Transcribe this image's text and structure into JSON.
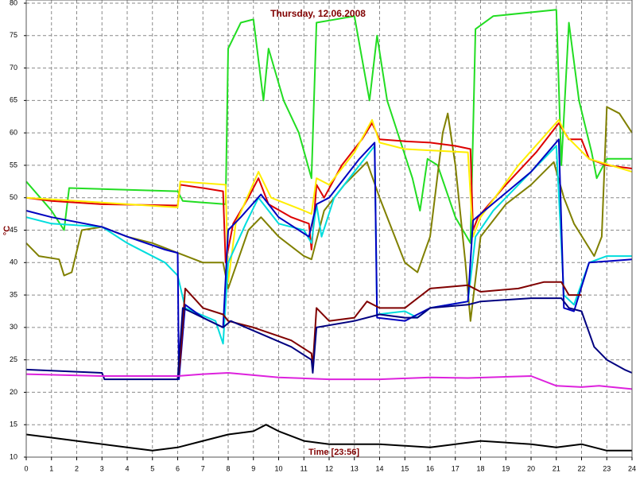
{
  "chart_data": {
    "type": "line",
    "title": "Thursday, 12.06.2008",
    "x_label": "Time [23:56]",
    "y_label": "°C",
    "xlim": [
      0,
      24
    ],
    "xticks": [
      0,
      1,
      2,
      3,
      4,
      5,
      6,
      7,
      8,
      9,
      10,
      11,
      12,
      13,
      14,
      15,
      16,
      17,
      18,
      19,
      20,
      21,
      22,
      23,
      24
    ],
    "ylim": [
      10,
      80
    ],
    "yticks": [
      10,
      15,
      20,
      25,
      30,
      35,
      40,
      45,
      50,
      55,
      60,
      65,
      70,
      75,
      80
    ],
    "grid": true,
    "series": [
      {
        "color": "#22dd22",
        "x": [
          0,
          1,
          1.5,
          1.7,
          6,
          6.2,
          7.9,
          8,
          8.5,
          9,
          9.4,
          9.6,
          10.2,
          10.8,
          11.3,
          11.5,
          13,
          13.6,
          13.9,
          14.3,
          15.3,
          15.6,
          15.9,
          16.3,
          17,
          17.6,
          17.8,
          18.5,
          21,
          21.2,
          21.5,
          21.9,
          22.4,
          22.6,
          23,
          24
        ],
        "values": [
          52.5,
          48,
          45,
          51.5,
          51,
          49.5,
          49,
          73,
          77,
          77.5,
          65,
          73,
          65,
          60,
          53,
          77,
          78,
          65,
          75,
          65,
          53,
          48,
          56,
          55,
          47,
          43,
          76,
          78,
          79,
          55,
          77,
          65,
          57,
          53,
          56,
          56
        ]
      },
      {
        "color": "#808000",
        "x": [
          0,
          0.5,
          1.3,
          1.5,
          1.8,
          2.2,
          3,
          4,
          5,
          6,
          7,
          7.8,
          8,
          8.8,
          9.3,
          10,
          11,
          11.3,
          11.8,
          12.6,
          13.5,
          14,
          14.5,
          15,
          15.5,
          16,
          16.5,
          16.7,
          17,
          17.4,
          17.6,
          18,
          19,
          20,
          20.9,
          21.3,
          21.7,
          22.5,
          22.8,
          23,
          23.5,
          24
        ],
        "values": [
          43,
          41,
          40.5,
          38,
          38.5,
          45,
          45.5,
          44,
          43,
          41.5,
          40,
          40,
          36,
          45,
          47,
          44,
          41,
          40.5,
          48,
          52,
          55.5,
          50,
          45,
          40,
          38.5,
          44,
          60,
          63,
          55,
          40,
          31,
          44,
          49,
          52,
          55.5,
          50,
          46,
          41,
          44,
          64,
          63,
          60
        ]
      },
      {
        "color": "#dd0000",
        "x": [
          0,
          1,
          3,
          6,
          6.1,
          7,
          7.8,
          7.9,
          8.2,
          8.8,
          9.2,
          9.6,
          10.5,
          11.2,
          11.3,
          11.5,
          11.8,
          12.5,
          13.3,
          13.7,
          14,
          15,
          16,
          17,
          17.6,
          17.7,
          17.9,
          19,
          20.2,
          21.1,
          21.5,
          22,
          22.3,
          23,
          24
        ],
        "values": [
          50,
          49.5,
          49,
          48.8,
          52,
          51.5,
          51,
          40,
          46,
          50,
          53,
          49,
          47,
          46,
          42,
          52,
          50,
          55,
          59,
          61.5,
          59,
          58.7,
          58.5,
          58,
          57.5,
          45,
          47,
          52,
          57,
          61.5,
          59,
          59,
          56,
          55,
          54.5
        ]
      },
      {
        "color": "#ffee00",
        "x": [
          0,
          6,
          6.1,
          7.9,
          8,
          8.3,
          9.2,
          9.7,
          11,
          11.3,
          11.5,
          12,
          13,
          13.7,
          14,
          15,
          17.5,
          17.7,
          18,
          19.5,
          21.1,
          21.4,
          22.3,
          24
        ],
        "values": [
          50,
          48.5,
          52.5,
          52,
          37,
          46,
          54,
          50,
          48,
          47.5,
          53,
          52,
          57,
          62,
          58.5,
          57.5,
          57,
          44,
          47,
          55,
          62,
          59.5,
          56,
          54
        ]
      },
      {
        "color": "#00dddd",
        "x": [
          0,
          1,
          3,
          4,
          5.5,
          6,
          6.3,
          7.5,
          7.8,
          8,
          8.7,
          9.2,
          10,
          11,
          11.3,
          11.5,
          11.7,
          12.2,
          13.2,
          13.8,
          13.9,
          15,
          15.5,
          16,
          17.5,
          17.8,
          18.5,
          20,
          21,
          21.3,
          21.7,
          22.3,
          23,
          24
        ],
        "values": [
          47,
          46,
          45.5,
          43,
          40,
          38,
          33,
          31,
          27.5,
          40,
          46,
          50,
          46,
          45,
          43,
          49,
          44,
          50,
          55,
          58,
          32,
          32.5,
          31.5,
          33,
          34,
          44,
          48,
          54,
          58,
          35,
          33.5,
          40,
          41,
          41
        ]
      },
      {
        "color": "#0000c0",
        "x": [
          0,
          1,
          3,
          4,
          5.5,
          6,
          6.05,
          6.3,
          7,
          7.8,
          8,
          8.5,
          9.3,
          10,
          11.2,
          11.5,
          12,
          13.2,
          13.8,
          13.9,
          15,
          16,
          17.5,
          17.7,
          18,
          20,
          21.1,
          21.3,
          21.7,
          22.3,
          24
        ],
        "values": [
          48,
          47,
          45.5,
          44,
          42,
          41.5,
          22,
          33.5,
          31.5,
          30,
          45,
          47,
          50.5,
          47,
          44,
          49,
          50,
          56,
          58.5,
          31.5,
          31,
          33,
          34,
          46.5,
          47.5,
          54,
          59,
          33,
          32.5,
          40,
          40.5
        ]
      },
      {
        "color": "#800000",
        "x": [
          6,
          6.1,
          6.3,
          7,
          7.8,
          8,
          9,
          10.5,
          11.3,
          11.35,
          11.5,
          12,
          13,
          13.5,
          14,
          15,
          16,
          17.5,
          18,
          19.5,
          20.5,
          21.2,
          21.5,
          22
        ],
        "values": [
          22,
          25,
          36,
          33,
          32,
          31,
          30,
          28,
          26,
          24,
          33,
          31,
          31.5,
          34,
          33,
          33,
          36,
          36.5,
          35.5,
          36,
          37,
          37,
          35,
          35
        ]
      },
      {
        "color": "#000080",
        "x": [
          0,
          3,
          3.1,
          6,
          6.2,
          7.8,
          8.1,
          9,
          10.5,
          11.3,
          11.35,
          11.5,
          13,
          14,
          15,
          15.5,
          16,
          17.5,
          18,
          20,
          21.2,
          21.5,
          22,
          22.5,
          23,
          23.7,
          24
        ],
        "values": [
          23.5,
          23,
          22,
          22,
          33,
          30,
          31,
          29.5,
          27,
          25,
          23,
          30,
          31,
          32,
          31.5,
          31.5,
          33,
          33.5,
          34,
          34.5,
          34.5,
          33,
          32.5,
          27,
          25,
          23.5,
          23
        ]
      },
      {
        "color": "#dd22dd",
        "x": [
          0,
          3,
          6,
          7,
          8,
          10,
          12,
          14,
          16,
          17.5,
          20,
          21,
          22,
          22.7,
          24
        ],
        "values": [
          22.8,
          22.5,
          22.5,
          22.8,
          23,
          22.3,
          22,
          22,
          22.3,
          22.2,
          22.5,
          21,
          20.8,
          21,
          20.5
        ]
      },
      {
        "color": "#000000",
        "x": [
          0,
          1,
          2,
          4,
          5,
          6,
          7,
          8,
          9,
          9.5,
          10,
          11,
          12,
          14,
          16,
          17,
          18,
          20,
          21,
          22,
          23,
          24
        ],
        "values": [
          13.5,
          13,
          12.5,
          11.5,
          11,
          11.5,
          12.5,
          13.5,
          14,
          15,
          14,
          12.5,
          12,
          12,
          11.5,
          12,
          12.5,
          12,
          11.5,
          12,
          11,
          11
        ]
      }
    ]
  }
}
